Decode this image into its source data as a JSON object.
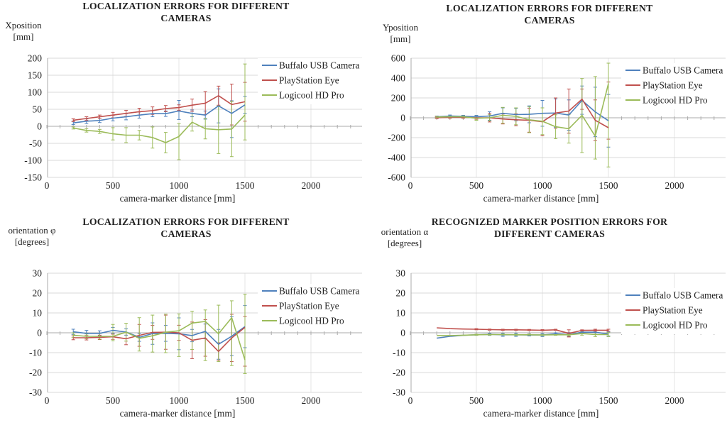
{
  "page_title": "Camera localization error charts",
  "legend_labels": [
    "Buffalo USB Camera",
    "PlayStation Eye",
    "Logicool HD Pro"
  ],
  "colors": {
    "buffalo": "#4F81BD",
    "playstation": "#C0504D",
    "logicool": "#9BBB59",
    "gridline": "#D9D9D9",
    "vertical_gridline": "#E4E4E4",
    "axis_line": "#ABABAB",
    "text": "#1f1f1f"
  },
  "chart_data": [
    {
      "type": "line",
      "title_lines": [
        "LOCALIZATION ERRORS FOR DIFFERENT",
        "CAMERAS"
      ],
      "y_label_lines": [
        "Xposition",
        "[mm]"
      ],
      "x_label": "camera-marker distance [mm]",
      "x_ticks": [
        0,
        500,
        1000,
        1500,
        2000
      ],
      "x_max": 2400,
      "ylim": [
        -150,
        200
      ],
      "y_ticks": [
        200,
        150,
        100,
        50,
        0,
        -50,
        -100,
        -150
      ],
      "legend": [
        "Buffalo USB Camera",
        "PlayStation Eye",
        "Logicool HD Pro"
      ],
      "legend_position": "right-inside",
      "grid": true,
      "x": [
        200,
        300,
        400,
        500,
        600,
        700,
        800,
        900,
        1000,
        1100,
        1200,
        1300,
        1400,
        1500
      ],
      "series": [
        {
          "name": "Buffalo USB Camera",
          "color": "#4F81BD",
          "values": [
            10,
            15,
            17,
            24,
            28,
            33,
            37,
            37,
            45,
            38,
            33,
            60,
            38,
            63
          ],
          "err_lo": [
            5,
            8,
            11,
            16,
            19,
            24,
            28,
            29,
            20,
            28,
            21,
            10,
            -33,
            38
          ],
          "err_hi": [
            15,
            22,
            23,
            32,
            37,
            42,
            46,
            45,
            76,
            48,
            45,
            110,
            75,
            88
          ]
        },
        {
          "name": "PlayStation Eye",
          "color": "#C0504D",
          "values": [
            18,
            23,
            28,
            33,
            38,
            43,
            46,
            52,
            55,
            62,
            68,
            90,
            64,
            72
          ],
          "err_lo": [
            14,
            18,
            23,
            25,
            29,
            33,
            35,
            43,
            47,
            44,
            34,
            62,
            4,
            15
          ],
          "err_hi": [
            22,
            28,
            33,
            41,
            47,
            53,
            57,
            61,
            63,
            80,
            102,
            118,
            124,
            129
          ]
        },
        {
          "name": "Logicool HD Pro",
          "color": "#9BBB59",
          "values": [
            -5,
            -12,
            -15,
            -22,
            -26,
            -26,
            -33,
            -48,
            -30,
            12,
            -7,
            -10,
            -8,
            33
          ],
          "err_lo": [
            -8,
            -17,
            -21,
            -40,
            -48,
            -40,
            -64,
            -78,
            -98,
            -14,
            -37,
            -80,
            -89,
            -40
          ],
          "err_hi": [
            -2,
            -7,
            -9,
            -4,
            -4,
            -12,
            -2,
            -18,
            8,
            38,
            23,
            60,
            73,
            183
          ]
        }
      ]
    },
    {
      "type": "line",
      "title_lines": [
        "LOCALIZATION ERRORS FOR DIFFERENT",
        "CAMERAS"
      ],
      "y_label_lines": [
        "Yposition",
        "[mm]"
      ],
      "x_label": "camera-marker distance [mm]",
      "x_ticks": [
        0,
        500,
        1000,
        1500,
        2000
      ],
      "x_max": 2400,
      "ylim": [
        -600,
        600
      ],
      "y_ticks": [
        600,
        400,
        200,
        0,
        -200,
        -400,
        -600
      ],
      "legend": [
        "Buffalo USB Camera",
        "PlayStation Eye",
        "Logicool HD Pro"
      ],
      "legend_position": "right-inside",
      "grid": true,
      "x": [
        200,
        300,
        400,
        500,
        600,
        700,
        800,
        900,
        1000,
        1100,
        1200,
        1300,
        1400,
        1500
      ],
      "series": [
        {
          "name": "Buffalo USB Camera",
          "color": "#4F81BD",
          "values": [
            10,
            18,
            15,
            10,
            18,
            45,
            32,
            35,
            45,
            48,
            28,
            175,
            60,
            -30
          ],
          "err_lo": [
            2,
            8,
            5,
            -5,
            -25,
            -10,
            -30,
            -50,
            -85,
            -95,
            -125,
            35,
            -190,
            -295
          ],
          "err_hi": [
            18,
            28,
            25,
            25,
            60,
            100,
            95,
            120,
            175,
            190,
            180,
            320,
            308,
            235
          ]
        },
        {
          "name": "PlayStation Eye",
          "color": "#C0504D",
          "values": [
            0,
            5,
            5,
            0,
            0,
            -12,
            -20,
            -25,
            -40,
            48,
            68,
            188,
            -25,
            -100
          ],
          "err_lo": [
            -8,
            -5,
            -5,
            -15,
            -42,
            -62,
            -80,
            -145,
            -180,
            -105,
            -155,
            85,
            -230,
            -215
          ],
          "err_hi": [
            8,
            15,
            15,
            15,
            42,
            38,
            40,
            95,
            100,
            200,
            290,
            290,
            180,
            360
          ]
        },
        {
          "name": "Logicool HD Pro",
          "color": "#9BBB59",
          "values": [
            8,
            10,
            10,
            -5,
            0,
            25,
            15,
            -20,
            -35,
            -90,
            -110,
            25,
            -185,
            345
          ],
          "err_lo": [
            0,
            0,
            0,
            -25,
            -30,
            -55,
            -70,
            -150,
            -170,
            -210,
            -255,
            -350,
            -415,
            -495
          ],
          "err_hi": [
            16,
            20,
            20,
            15,
            30,
            105,
            100,
            110,
            100,
            30,
            35,
            395,
            415,
            550
          ]
        }
      ]
    },
    {
      "type": "line",
      "title_lines": [
        "LOCALIZATION ERRORS FOR DIFFERENT",
        "CAMERAS"
      ],
      "y_label_lines": [
        "orientation φ",
        "[degrees]"
      ],
      "x_label": "camera-marker distance [mm]",
      "x_ticks": [
        0,
        500,
        1000,
        1500,
        2000
      ],
      "x_max": 2400,
      "ylim": [
        -30,
        30
      ],
      "y_ticks": [
        30,
        20,
        10,
        0,
        -10,
        -20,
        -30
      ],
      "legend": [
        "Buffalo USB Camera",
        "PlayStation Eye",
        "Logicool HD Pro"
      ],
      "legend_position": "right-inside",
      "grid": true,
      "x": [
        200,
        300,
        400,
        500,
        600,
        700,
        800,
        900,
        1000,
        1100,
        1200,
        1300,
        1400,
        1500
      ],
      "series": [
        {
          "name": "Buffalo USB Camera",
          "color": "#4F81BD",
          "values": [
            0.5,
            -0.3,
            -0.3,
            1.2,
            0.4,
            -2.3,
            -0.4,
            -0.3,
            -0.5,
            -1.4,
            0.7,
            -5.8,
            -1.7,
            3.1
          ],
          "err_lo": [
            -0.8,
            -1.8,
            -1.5,
            -0.3,
            -1.2,
            -4.3,
            -5.8,
            -4.3,
            -8.5,
            -4.5,
            -3.0,
            -13.3,
            -11.5,
            -7.5
          ],
          "err_hi": [
            1.8,
            1.2,
            1.0,
            2.7,
            2.0,
            -0.3,
            5.0,
            3.7,
            7.5,
            1.7,
            4.4,
            1.7,
            8.1,
            13.7
          ]
        },
        {
          "name": "PlayStation Eye",
          "color": "#C0504D",
          "values": [
            -2.5,
            -2.5,
            -2.3,
            -2.0,
            -3.0,
            -1.3,
            0.2,
            0.3,
            0.0,
            -3.8,
            -2.6,
            -9.4,
            -2.6,
            2.7
          ],
          "err_lo": [
            -3.5,
            -3.6,
            -3.4,
            -3.3,
            -6.0,
            -6.8,
            -3.3,
            -8.3,
            -3.8,
            -13.0,
            -11.8,
            -13.8,
            -14.5,
            -16.8
          ],
          "err_hi": [
            -1.5,
            -1.4,
            -1.2,
            -0.7,
            0.0,
            4.2,
            3.7,
            8.9,
            3.8,
            5.4,
            6.6,
            -5.0,
            9.3,
            8.2
          ]
        },
        {
          "name": "Logicool HD Pro",
          "color": "#9BBB59",
          "values": [
            -1.2,
            -1.8,
            -1.8,
            -1.8,
            0.3,
            -2.8,
            -1.5,
            0.3,
            1.0,
            4.9,
            5.7,
            -0.5,
            7.6,
            -13.6
          ],
          "err_lo": [
            -2.4,
            -3.0,
            -3.2,
            -4.0,
            -4.2,
            -9.2,
            -9.7,
            -10.0,
            -11.9,
            -8.4,
            -14.0,
            -14.5,
            -16.5,
            -20.5
          ],
          "err_hi": [
            0.0,
            -0.6,
            -0.4,
            4.2,
            4.8,
            7.6,
            8.9,
            9.4,
            9.5,
            10.9,
            11.5,
            13.9,
            16.1,
            19.4
          ]
        }
      ]
    },
    {
      "type": "line",
      "title_lines": [
        "RECOGNIZED MARKER POSITION  ERRORS FOR",
        "DIFFERENT CAMERAS"
      ],
      "y_label_lines": [
        "orientation α",
        "[degrees]"
      ],
      "x_label": "camera-marker distance [mm]",
      "x_ticks": [
        0,
        500,
        1000,
        1500,
        2000
      ],
      "x_max": 2400,
      "ylim": [
        -30,
        30
      ],
      "y_ticks": [
        30,
        20,
        10,
        0,
        -10,
        -20,
        -30
      ],
      "legend": [
        "Buffalo USB Camera",
        "PlayStation Eye",
        "Logicool HD Pro"
      ],
      "legend_position": "right-inside",
      "grid": true,
      "x": [
        200,
        300,
        400,
        500,
        600,
        700,
        800,
        900,
        1000,
        1100,
        1200,
        1300,
        1400,
        1500
      ],
      "series": [
        {
          "name": "Buffalo USB Camera",
          "color": "#4F81BD",
          "values": [
            -2.7,
            -1.8,
            -1.3,
            -1.0,
            -0.8,
            -1.0,
            -1.0,
            -1.1,
            -1.1,
            -0.5,
            -0.9,
            0.3,
            0.3,
            -0.6
          ],
          "err_lo": [
            -2.7,
            -1.8,
            -1.3,
            -1.0,
            -1.3,
            -1.8,
            -1.8,
            -1.6,
            -1.9,
            -1.0,
            -1.9,
            -0.2,
            -0.7,
            -1.6
          ],
          "err_hi": [
            -2.7,
            -1.8,
            -1.3,
            -1.0,
            -0.3,
            -0.2,
            -0.2,
            -0.6,
            -0.3,
            0.0,
            0.1,
            0.8,
            1.3,
            0.4
          ]
        },
        {
          "name": "PlayStation Eye",
          "color": "#C0504D",
          "values": [
            2.5,
            2.1,
            1.9,
            1.8,
            1.6,
            1.5,
            1.5,
            1.4,
            1.3,
            1.5,
            -0.3,
            1.2,
            1.3,
            1.3
          ],
          "err_lo": [
            2.5,
            2.1,
            1.9,
            1.5,
            1.3,
            1.2,
            1.2,
            1.1,
            1.0,
            1.2,
            -2.1,
            0.9,
            0.8,
            0.8
          ],
          "err_hi": [
            2.5,
            2.1,
            1.9,
            2.1,
            1.9,
            1.8,
            1.8,
            1.7,
            1.6,
            1.8,
            1.5,
            1.5,
            1.8,
            1.8
          ]
        },
        {
          "name": "Logicool HD Pro",
          "color": "#9BBB59",
          "values": [
            -1.4,
            -1.4,
            -1.2,
            -1.0,
            -0.9,
            -0.9,
            -1.0,
            -1.0,
            -1.1,
            -1.0,
            -1.0,
            -0.4,
            -0.9,
            -0.9
          ],
          "err_lo": [
            -1.4,
            -1.4,
            -1.2,
            -1.3,
            -1.2,
            -1.2,
            -1.3,
            -1.3,
            -1.4,
            -1.3,
            -1.5,
            -1.2,
            -1.9,
            -1.9
          ],
          "err_hi": [
            -1.4,
            -1.4,
            -1.2,
            -0.7,
            -0.6,
            -0.6,
            -0.7,
            -0.7,
            -0.8,
            -0.7,
            -0.5,
            0.4,
            0.1,
            0.1
          ]
        }
      ]
    }
  ]
}
